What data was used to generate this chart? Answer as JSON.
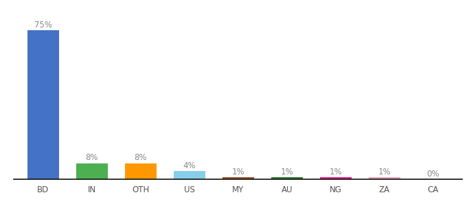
{
  "categories": [
    "BD",
    "IN",
    "OTH",
    "US",
    "MY",
    "AU",
    "NG",
    "ZA",
    "CA"
  ],
  "values": [
    75,
    8,
    8,
    4,
    1,
    1,
    1,
    1,
    0
  ],
  "labels": [
    "75%",
    "8%",
    "8%",
    "4%",
    "1%",
    "1%",
    "1%",
    "1%",
    "0%"
  ],
  "colors": [
    "#4472c4",
    "#4caf50",
    "#ff9800",
    "#87ceeb",
    "#a0522d",
    "#2e7d32",
    "#e91e8c",
    "#f8a0b8",
    "#dddddd"
  ],
  "background_color": "#ffffff",
  "label_color": "#888888",
  "label_fontsize": 8.5,
  "tick_fontsize": 8.5,
  "bar_width": 0.65,
  "ylim": [
    0,
    83
  ],
  "figsize": [
    6.8,
    3.0
  ],
  "dpi": 100
}
